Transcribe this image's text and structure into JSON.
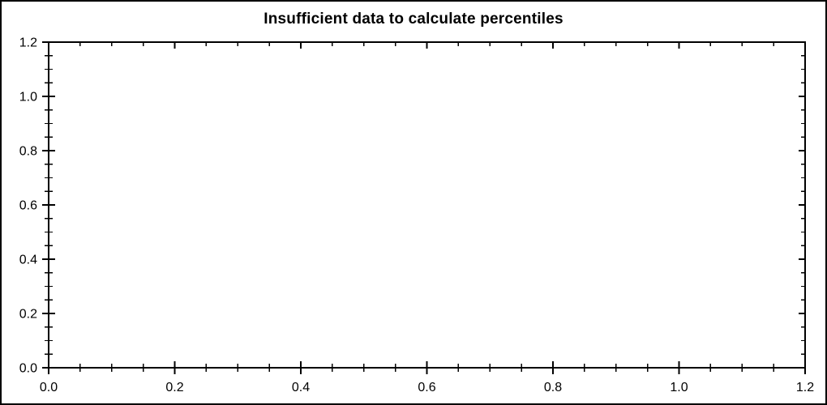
{
  "styles": {
    "background": "#ffffff",
    "foreground": "#000000",
    "border_color": "#000000"
  },
  "chart_data": {
    "type": "scatter",
    "title": "Insufficient data to calculate percentiles",
    "series": [],
    "x_axis": {
      "min": 0,
      "max": 1.2,
      "major_step": 0.2,
      "minor_step": 0.05,
      "tick_labels": [
        "0.0",
        "0.2",
        "0.4",
        "0.6",
        "0.8",
        "1.0",
        "1.2"
      ]
    },
    "y_axis": {
      "min": 0,
      "max": 1.2,
      "major_step": 0.2,
      "minor_step": 0.05,
      "tick_labels": [
        "0.0",
        "0.2",
        "0.4",
        "0.6",
        "0.8",
        "1.0",
        "1.2"
      ]
    },
    "grid": false,
    "legend": false,
    "plot_area_empty": true
  }
}
